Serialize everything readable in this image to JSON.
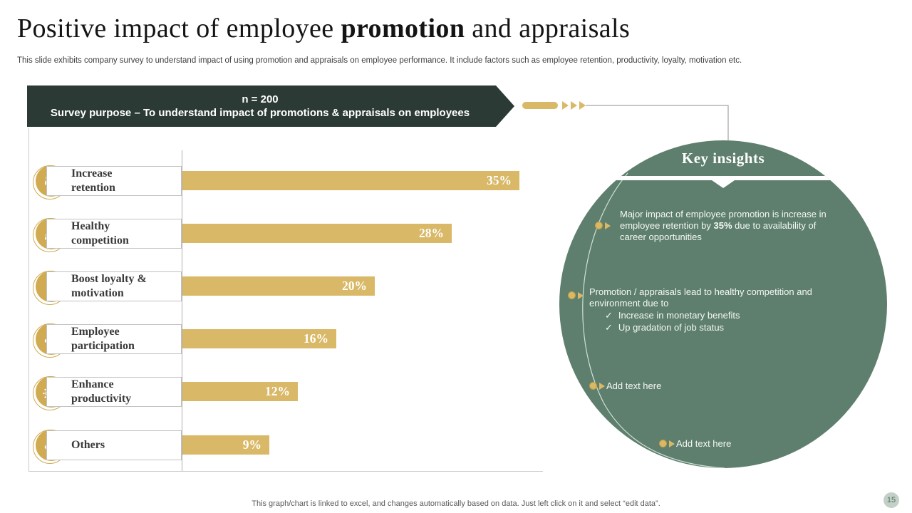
{
  "slide": {
    "title": {
      "part1": "Positive impact of employee ",
      "bold": "promotion",
      "part3": " and appraisals"
    },
    "subtitle": "This slide exhibits company survey to understand impact of using promotion and appraisals on employee performance. It include factors such as employee retention,  productivity,  loyalty,  motivation etc.",
    "footer_note": "This graph/chart is linked to excel,  and changes automatically based on data. Just left click on it and select “edit data”.",
    "page_number": "15"
  },
  "banner": {
    "line1": "n = 200",
    "line2": "Survey purpose –  To understand impact of promotions & appraisals on employees"
  },
  "chart_data": {
    "type": "bar",
    "orientation": "horizontal",
    "title": "",
    "xlabel": "",
    "ylabel": "",
    "categories": [
      "Increase retention",
      "Healthy competition",
      "Boost loyalty & motivation",
      "Employee participation",
      "Enhance productivity",
      "Others"
    ],
    "values": [
      35,
      28,
      20,
      16,
      12,
      9
    ],
    "value_labels": [
      "35%",
      "28%",
      "20%",
      "16%",
      "12%",
      "9%"
    ],
    "xlim": [
      0,
      37
    ],
    "grid": false,
    "legend": "none",
    "bar_color": "#D9B967",
    "icons": [
      "person-growth-icon",
      "podium-star-icon",
      "cheer-chart-icon",
      "handshake-icon",
      "gear-pencil-icon",
      "person-balance-icon"
    ]
  },
  "key_insights": {
    "title": "Key insights",
    "items": [
      {
        "part1": "Major impact of employee  promotion is increase in employee  retention  by ",
        "bold": "35%",
        "part2": "  due to availability of  career  opportunities"
      },
      {
        "lead": "Promotion / appraisals  lead to healthy competition  and environment   due to",
        "check_glyph": "✓",
        "checks": [
          "Increase in monetary  benefits",
          "Up gradation of job status"
        ]
      },
      {
        "text": "Add text here"
      },
      {
        "text": "Add text here"
      }
    ]
  },
  "colors": {
    "accent_gold": "#D9B967",
    "icon_gold": "#D0AB52",
    "banner_green": "#2B3A34",
    "insight_green": "#5E7F6E",
    "footer_gray": "#595959",
    "badge_bg": "#C3D0C7"
  }
}
